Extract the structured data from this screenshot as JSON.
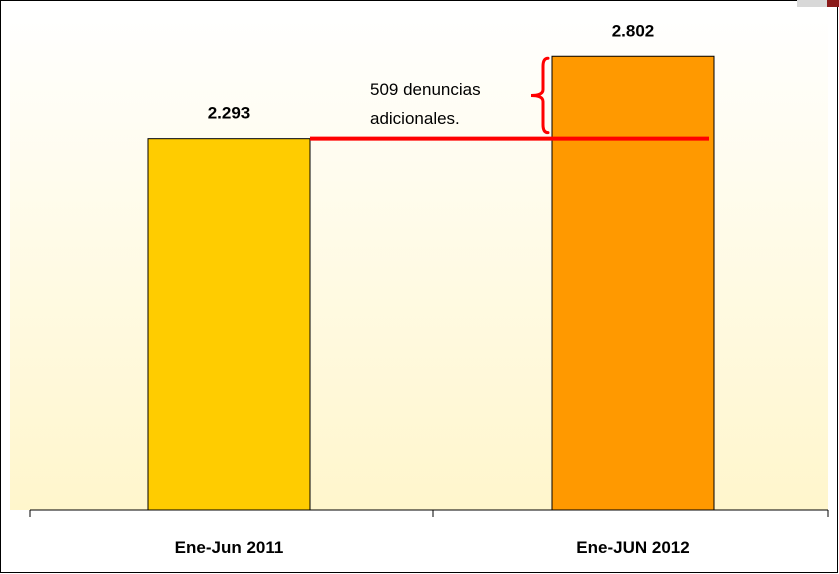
{
  "chart_data": {
    "type": "bar",
    "categories": [
      "Ene-Jun 2011",
      "Ene-JUN 2012"
    ],
    "values": [
      2293,
      2802
    ],
    "data_labels": [
      "2.293",
      "2.802"
    ],
    "ylim": [
      0,
      3100
    ],
    "grid": false,
    "bar_colors": [
      "#FFCC00",
      "#FF9900"
    ],
    "background_gradient": [
      "#FFFFFF",
      "#FFF6CC"
    ],
    "annotation": {
      "lines": [
        "509 denuncias",
        "adicionales."
      ],
      "color": "#FF0000",
      "from_value": 2293,
      "to_value": 2802
    }
  }
}
